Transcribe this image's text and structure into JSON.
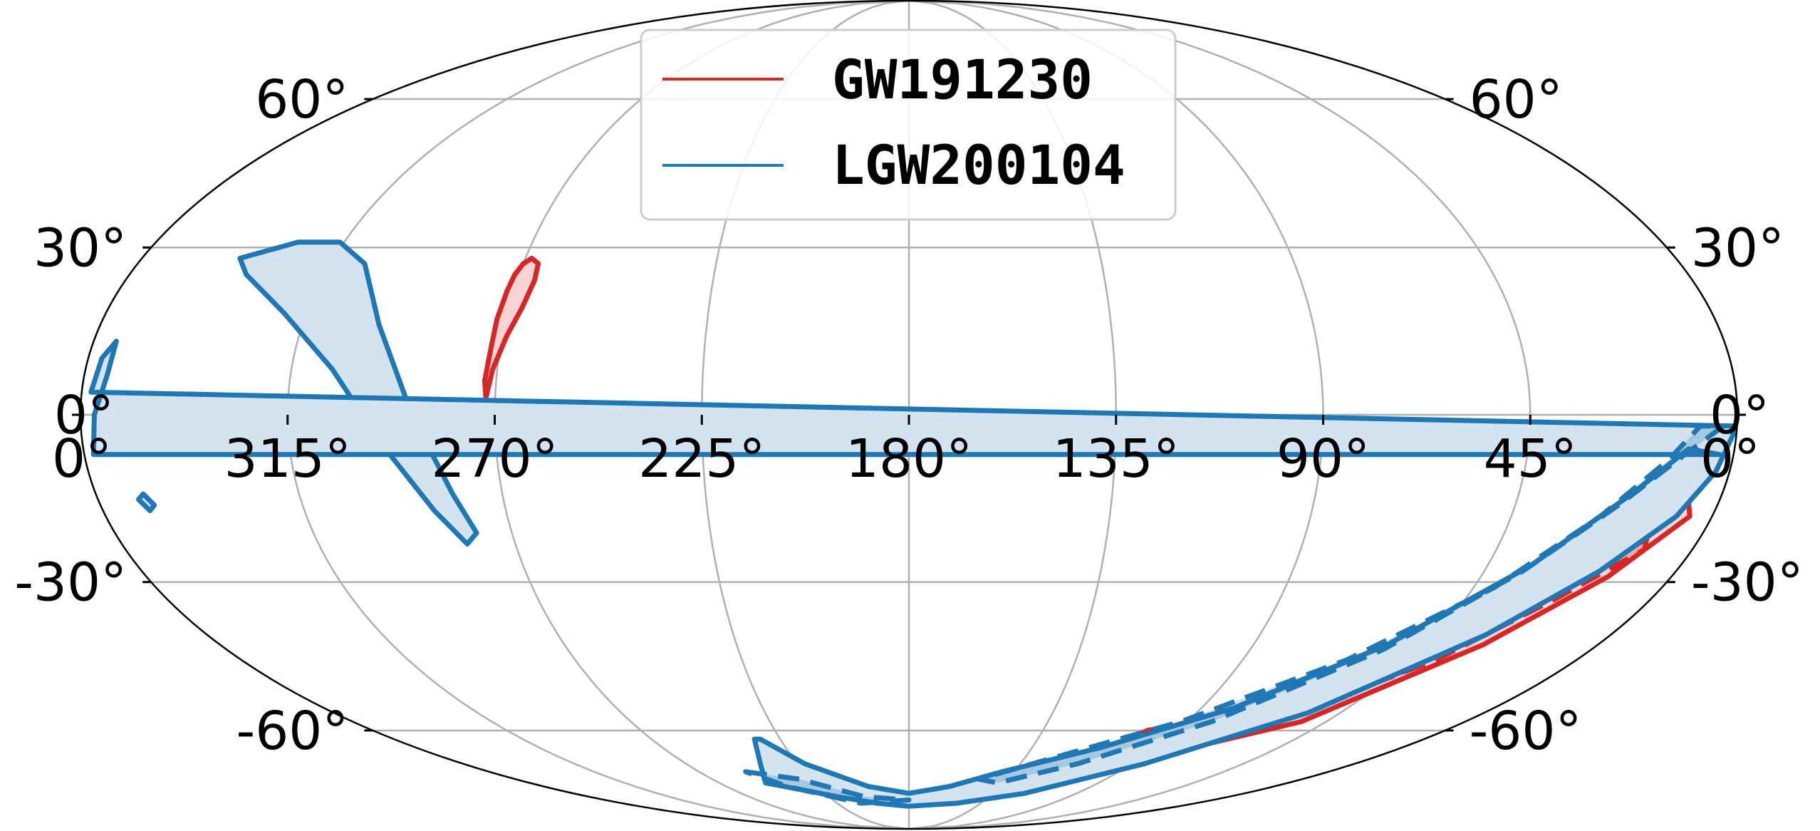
{
  "chart_data": {
    "type": "scatter",
    "projection": "mollweide",
    "title": "",
    "xlabel": "",
    "ylabel": "",
    "grid": true,
    "legend_placement": "upper-center",
    "lon_ticks": [
      "0°",
      "315°",
      "270°",
      "225°",
      "180°",
      "135°",
      "90°",
      "45°",
      "0°"
    ],
    "lon_tick_values": [
      0,
      315,
      270,
      225,
      180,
      135,
      90,
      45,
      0
    ],
    "lat_ticks_left": [
      "60°",
      "30°",
      "0°",
      "-30°",
      "-60°"
    ],
    "lat_ticks_right": [
      "60°",
      "30°",
      "0°",
      "-30°",
      "-60°"
    ],
    "lat_tick_values": [
      60,
      30,
      0,
      -30,
      -60
    ],
    "series": [
      {
        "name": "GW191230",
        "color": "#d62728",
        "fill": "#f7d4d4",
        "regions": [
          {
            "level": "90%",
            "style": "solid",
            "points": [
              [
                272,
                3
              ],
              [
                271,
                8
              ],
              [
                269,
                14
              ],
              [
                267,
                19
              ],
              [
                266,
                24
              ],
              [
                266.5,
                27
              ],
              [
                268.5,
                28
              ],
              [
                270,
                27
              ],
              [
                271,
                25
              ],
              [
                271.5,
                22
              ],
              [
                272,
                17
              ],
              [
                272,
                12
              ],
              [
                272.5,
                6
              ]
            ]
          },
          {
            "level": "90%",
            "style": "solid",
            "points": [
              [
                7,
                -15
              ],
              [
                20,
                -25
              ],
              [
                35,
                -38
              ],
              [
                60,
                -54
              ],
              [
                100,
                -60
              ],
              [
                105,
                -64
              ],
              [
                85,
                -66
              ],
              [
                53,
                -58
              ],
              [
                30,
                -42
              ],
              [
                15,
                -29
              ],
              [
                5,
                -18
              ]
            ]
          },
          {
            "level": "50%",
            "style": "dashed",
            "points": [
              [
                12,
                -22
              ],
              [
                26,
                -34
              ],
              [
                42,
                -47
              ],
              [
                68,
                -57
              ],
              [
                92,
                -62
              ],
              [
                87,
                -63
              ],
              [
                60,
                -57
              ],
              [
                38,
                -45
              ],
              [
                23,
                -33
              ],
              [
                11,
                -24
              ]
            ]
          }
        ]
      },
      {
        "name": "LGW200104",
        "color": "#1f77b4",
        "fill": "#d3e3f0",
        "regions": [
          {
            "level": "90%",
            "style": "solid",
            "points": [
              [
                337,
                28
              ],
              [
                326,
                31
              ],
              [
                316,
                31
              ],
              [
                307,
                27
              ],
              [
                298,
                16
              ],
              [
                288,
                0
              ],
              [
                281,
                -14
              ],
              [
                278,
                -21
              ],
              [
                281,
                -23
              ],
              [
                286,
                -17
              ],
              [
                295,
                -5
              ],
              [
                306,
                8
              ],
              [
                320,
                18
              ],
              [
                333,
                25
              ]
            ]
          },
          {
            "level": "90%",
            "style": "solid",
            "points": [
              [
                -5,
                13
              ],
              [
                -5,
                7
              ],
              [
                -3,
                0
              ],
              [
                -2,
                -7
              ],
              [
                3,
                -7
              ],
              [
                10,
                -6
              ],
              [
                20,
                -14
              ],
              [
                35,
                -27
              ],
              [
                55,
                -42
              ],
              [
                80,
                -55
              ],
              [
                110,
                -64
              ],
              [
                140,
                -70
              ],
              [
                160,
                -74
              ],
              [
                180,
                -76
              ],
              [
                200,
                -74
              ],
              [
                222,
                -68
              ],
              [
                232,
                -62
              ],
              [
                234,
                -62
              ],
              [
                240,
                -68
              ],
              [
                248,
                -73
              ],
              [
                220,
                -77
              ],
              [
                200,
                -79
              ],
              [
                180,
                -80
              ],
              [
                150,
                -79
              ],
              [
                118,
                -76
              ],
              [
                85,
                -68
              ],
              [
                55,
                -56
              ],
              [
                32,
                -40
              ],
              [
                18,
                -28
              ],
              [
                8,
                -18
              ],
              [
                3,
                -10
              ],
              [
                0,
                -2
              ],
              [
                -2,
                4
              ],
              [
                -3,
                10
              ]
            ]
          },
          {
            "level": "90%",
            "style": "solid",
            "points": [
              [
                351,
                -15
              ],
              [
                349.5,
                -17
              ],
              [
                348,
                -16
              ],
              [
                349.5,
                -14
              ]
            ]
          },
          {
            "level": "50%",
            "style": "dashed",
            "points": [
              [
                3,
                -2
              ],
              [
                12,
                -8
              ],
              [
                22,
                -16
              ],
              [
                36,
                -28
              ],
              [
                55,
                -43
              ],
              [
                82,
                -58
              ],
              [
                112,
                -68
              ],
              [
                138,
                -73
              ],
              [
                148,
                -72
              ],
              [
                122,
                -66
              ],
              [
                92,
                -58
              ],
              [
                62,
                -45
              ],
              [
                40,
                -31
              ],
              [
                25,
                -18
              ],
              [
                14,
                -8
              ],
              [
                8,
                -2
              ]
            ]
          },
          {
            "level": "50%",
            "style": "dashed",
            "points": [
              [
                250,
                -70
              ],
              [
                230,
                -72
              ],
              [
                205,
                -77
              ],
              [
                180,
                -78
              ],
              [
                210,
                -79
              ],
              [
                240,
                -74
              ]
            ]
          }
        ]
      }
    ]
  }
}
